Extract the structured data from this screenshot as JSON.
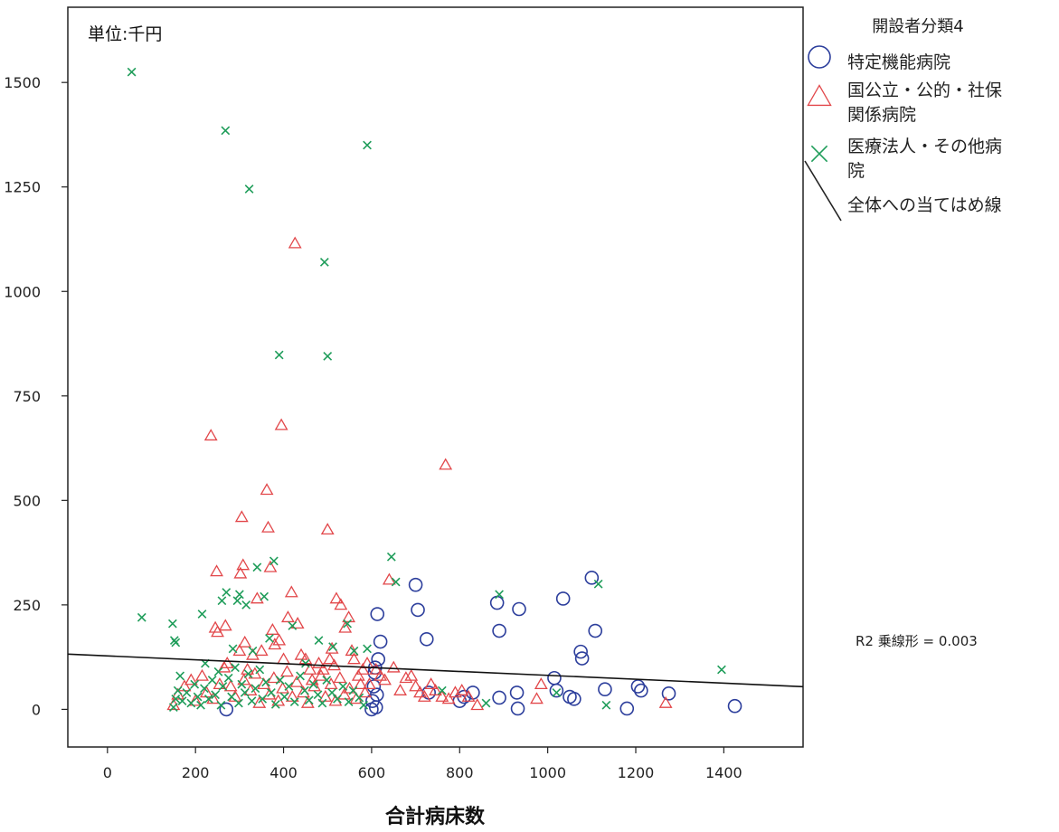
{
  "chart_data": {
    "type": "scatter",
    "unit_label": "単位:千円",
    "xlabel": "合計病床数",
    "ylabel": "",
    "xlim": [
      -90,
      1580
    ],
    "ylim": [
      -90,
      1680
    ],
    "xticks": [
      0,
      200,
      400,
      600,
      800,
      1000,
      1200,
      1400
    ],
    "yticks": [
      0,
      250,
      500,
      750,
      1000,
      1250,
      1500
    ],
    "grid": false,
    "legend": {
      "title": "開設者分類4",
      "position": "right",
      "entries": [
        {
          "label_lines": [
            "特定機能病院"
          ],
          "marker": "circle",
          "color": "#2c3e9c"
        },
        {
          "label_lines": [
            "国公立・公的・社保",
            "関係病院"
          ],
          "marker": "triangle",
          "color": "#e2474a"
        },
        {
          "label_lines": [
            "医療法人・その他病",
            "院"
          ],
          "marker": "cross",
          "color": "#1f9d5a"
        },
        {
          "label_lines": [
            "全体への当てはめ線"
          ],
          "marker": "line",
          "color": "#222222"
        }
      ]
    },
    "annotation": "R2 乗線形 = 0.003",
    "fit_line": {
      "intercept": 128,
      "slope": -0.0466
    },
    "series": [
      {
        "name": "特定機能病院",
        "marker": "circle",
        "color": "#2c3e9c",
        "points": [
          [
            270,
            0
          ],
          [
            600,
            0
          ],
          [
            602,
            20
          ],
          [
            605,
            55
          ],
          [
            607,
            88
          ],
          [
            608,
            100
          ],
          [
            610,
            5
          ],
          [
            612,
            35
          ],
          [
            615,
            120
          ],
          [
            613,
            228
          ],
          [
            620,
            162
          ],
          [
            700,
            298
          ],
          [
            705,
            238
          ],
          [
            725,
            168
          ],
          [
            730,
            40
          ],
          [
            800,
            20
          ],
          [
            810,
            30
          ],
          [
            830,
            40
          ],
          [
            885,
            255
          ],
          [
            890,
            28
          ],
          [
            890,
            188
          ],
          [
            930,
            40
          ],
          [
            932,
            2
          ],
          [
            935,
            240
          ],
          [
            1015,
            75
          ],
          [
            1020,
            45
          ],
          [
            1035,
            265
          ],
          [
            1050,
            30
          ],
          [
            1060,
            25
          ],
          [
            1075,
            138
          ],
          [
            1078,
            122
          ],
          [
            1100,
            315
          ],
          [
            1108,
            188
          ],
          [
            1130,
            48
          ],
          [
            1180,
            2
          ],
          [
            1205,
            55
          ],
          [
            1212,
            45
          ],
          [
            1275,
            38
          ],
          [
            1425,
            8
          ]
        ]
      },
      {
        "name": "国公立・公的・社保関係病院",
        "marker": "triangle",
        "color": "#e2474a",
        "points": [
          [
            235,
            655
          ],
          [
            248,
            330
          ],
          [
            245,
            195
          ],
          [
            250,
            185
          ],
          [
            268,
            200
          ],
          [
            272,
            110
          ],
          [
            300,
            140
          ],
          [
            302,
            325
          ],
          [
            305,
            460
          ],
          [
            308,
            345
          ],
          [
            312,
            160
          ],
          [
            318,
            95
          ],
          [
            330,
            130
          ],
          [
            340,
            265
          ],
          [
            350,
            140
          ],
          [
            362,
            525
          ],
          [
            365,
            435
          ],
          [
            370,
            340
          ],
          [
            375,
            190
          ],
          [
            380,
            155
          ],
          [
            390,
            165
          ],
          [
            395,
            680
          ],
          [
            400,
            120
          ],
          [
            410,
            220
          ],
          [
            418,
            280
          ],
          [
            426,
            1115
          ],
          [
            432,
            205
          ],
          [
            440,
            130
          ],
          [
            450,
            120
          ],
          [
            460,
            95
          ],
          [
            465,
            70
          ],
          [
            480,
            110
          ],
          [
            490,
            95
          ],
          [
            500,
            430
          ],
          [
            505,
            120
          ],
          [
            510,
            145
          ],
          [
            515,
            105
          ],
          [
            520,
            265
          ],
          [
            530,
            250
          ],
          [
            540,
            195
          ],
          [
            548,
            220
          ],
          [
            555,
            140
          ],
          [
            560,
            120
          ],
          [
            570,
            80
          ],
          [
            580,
            95
          ],
          [
            590,
            110
          ],
          [
            595,
            60
          ],
          [
            610,
            95
          ],
          [
            620,
            80
          ],
          [
            630,
            70
          ],
          [
            640,
            310
          ],
          [
            650,
            100
          ],
          [
            665,
            45
          ],
          [
            678,
            75
          ],
          [
            690,
            80
          ],
          [
            700,
            55
          ],
          [
            710,
            40
          ],
          [
            720,
            30
          ],
          [
            735,
            60
          ],
          [
            745,
            45
          ],
          [
            760,
            30
          ],
          [
            768,
            585
          ],
          [
            775,
            25
          ],
          [
            790,
            40
          ],
          [
            805,
            45
          ],
          [
            820,
            30
          ],
          [
            840,
            10
          ],
          [
            975,
            25
          ],
          [
            985,
            60
          ],
          [
            1268,
            15
          ],
          [
            150,
            10
          ],
          [
            160,
            35
          ],
          [
            175,
            55
          ],
          [
            190,
            70
          ],
          [
            200,
            20
          ],
          [
            215,
            80
          ],
          [
            225,
            40
          ],
          [
            240,
            25
          ],
          [
            255,
            60
          ],
          [
            265,
            100
          ],
          [
            280,
            55
          ],
          [
            290,
            30
          ],
          [
            310,
            70
          ],
          [
            325,
            45
          ],
          [
            335,
            85
          ],
          [
            345,
            15
          ],
          [
            355,
            60
          ],
          [
            368,
            35
          ],
          [
            378,
            75
          ],
          [
            388,
            20
          ],
          [
            398,
            50
          ],
          [
            408,
            90
          ],
          [
            420,
            30
          ],
          [
            430,
            65
          ],
          [
            445,
            40
          ],
          [
            455,
            15
          ],
          [
            470,
            55
          ],
          [
            485,
            80
          ],
          [
            495,
            30
          ],
          [
            508,
            60
          ],
          [
            518,
            20
          ],
          [
            528,
            75
          ],
          [
            538,
            35
          ],
          [
            550,
            50
          ],
          [
            565,
            25
          ],
          [
            575,
            60
          ],
          [
            585,
            40
          ]
        ]
      },
      {
        "name": "医療法人・その他病院",
        "marker": "cross",
        "color": "#1f9d5a",
        "points": [
          [
            55,
            1525
          ],
          [
            268,
            1385
          ],
          [
            322,
            1245
          ],
          [
            390,
            848
          ],
          [
            493,
            1070
          ],
          [
            500,
            845
          ],
          [
            590,
            1350
          ],
          [
            78,
            220
          ],
          [
            148,
            205
          ],
          [
            152,
            165
          ],
          [
            155,
            160
          ],
          [
            165,
            80
          ],
          [
            215,
            228
          ],
          [
            222,
            110
          ],
          [
            260,
            260
          ],
          [
            270,
            280
          ],
          [
            285,
            145
          ],
          [
            295,
            260
          ],
          [
            300,
            275
          ],
          [
            315,
            250
          ],
          [
            330,
            140
          ],
          [
            340,
            340
          ],
          [
            356,
            270
          ],
          [
            368,
            170
          ],
          [
            378,
            355
          ],
          [
            420,
            200
          ],
          [
            450,
            110
          ],
          [
            480,
            165
          ],
          [
            512,
            150
          ],
          [
            545,
            205
          ],
          [
            560,
            140
          ],
          [
            590,
            145
          ],
          [
            645,
            365
          ],
          [
            655,
            305
          ],
          [
            760,
            45
          ],
          [
            860,
            15
          ],
          [
            890,
            275
          ],
          [
            1020,
            40
          ],
          [
            1115,
            300
          ],
          [
            1133,
            10
          ],
          [
            1395,
            95
          ],
          [
            150,
            5
          ],
          [
            155,
            25
          ],
          [
            160,
            45
          ],
          [
            170,
            20
          ],
          [
            180,
            40
          ],
          [
            190,
            15
          ],
          [
            198,
            60
          ],
          [
            205,
            30
          ],
          [
            212,
            10
          ],
          [
            220,
            50
          ],
          [
            230,
            25
          ],
          [
            238,
            70
          ],
          [
            245,
            35
          ],
          [
            252,
            90
          ],
          [
            258,
            10
          ],
          [
            262,
            55
          ],
          [
            275,
            75
          ],
          [
            282,
            30
          ],
          [
            290,
            100
          ],
          [
            298,
            15
          ],
          [
            305,
            60
          ],
          [
            312,
            40
          ],
          [
            320,
            85
          ],
          [
            328,
            20
          ],
          [
            336,
            50
          ],
          [
            346,
            95
          ],
          [
            352,
            25
          ],
          [
            360,
            65
          ],
          [
            372,
            40
          ],
          [
            382,
            12
          ],
          [
            392,
            70
          ],
          [
            402,
            30
          ],
          [
            412,
            55
          ],
          [
            425,
            18
          ],
          [
            438,
            80
          ],
          [
            448,
            45
          ],
          [
            458,
            22
          ],
          [
            468,
            60
          ],
          [
            478,
            35
          ],
          [
            488,
            15
          ],
          [
            498,
            70
          ],
          [
            510,
            40
          ],
          [
            522,
            25
          ],
          [
            535,
            55
          ],
          [
            548,
            18
          ],
          [
            558,
            45
          ],
          [
            572,
            28
          ],
          [
            582,
            10
          ]
        ]
      }
    ]
  }
}
